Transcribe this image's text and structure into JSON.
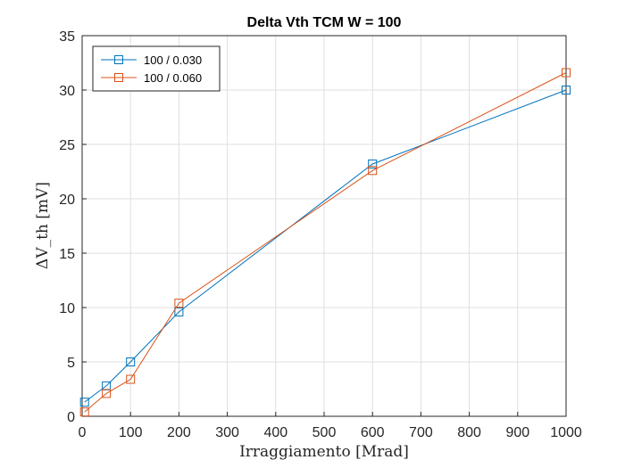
{
  "chart_data": {
    "type": "line",
    "title": "Delta Vth TCM W = 100",
    "xlabel": "Irraggiamento [Mrad]",
    "ylabel": "ΔV_th [mV]",
    "xlim": [
      0,
      1000
    ],
    "ylim": [
      0,
      35
    ],
    "x_ticks": [
      "0",
      "100",
      "200",
      "300",
      "400",
      "500",
      "600",
      "700",
      "800",
      "900",
      "1000"
    ],
    "y_ticks": [
      "0",
      "5",
      "10",
      "15",
      "20",
      "25",
      "30",
      "35"
    ],
    "grid": true,
    "legend_position": "top-left",
    "series": [
      {
        "name": "100 / 0.030",
        "color": "#0072BD",
        "marker": "square",
        "x": [
          5,
          50,
          100,
          200,
          600,
          1000
        ],
        "y": [
          1.3,
          2.8,
          5.0,
          9.6,
          23.2,
          30.0
        ]
      },
      {
        "name": "100 / 0.060",
        "color": "#D95319",
        "marker": "square",
        "x": [
          5,
          50,
          100,
          200,
          600,
          1000
        ],
        "y": [
          0.4,
          2.1,
          3.4,
          10.4,
          22.6,
          31.6
        ]
      }
    ]
  }
}
